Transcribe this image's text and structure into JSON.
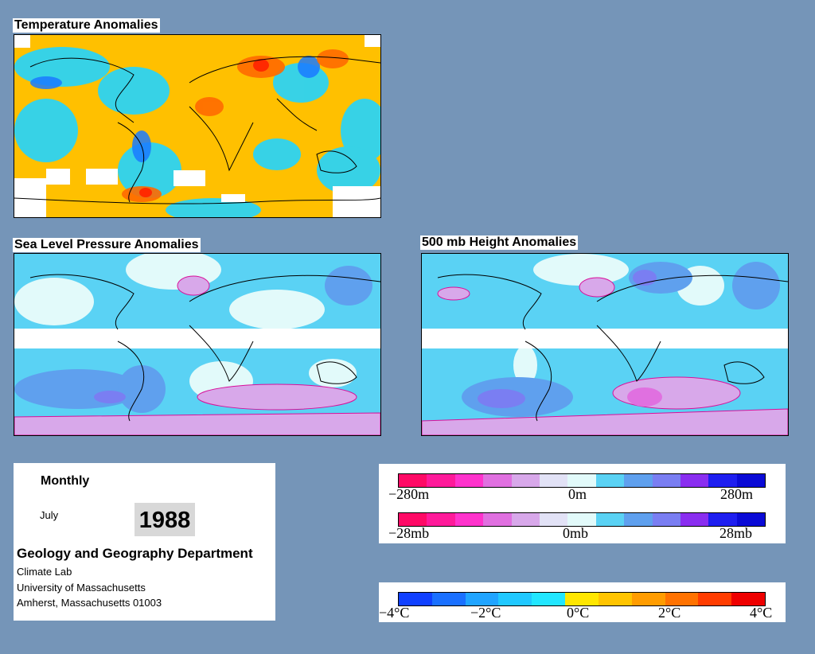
{
  "panels": {
    "temperature": {
      "title": "Temperature Anomalies"
    },
    "slp": {
      "title": "Sea Level Pressure Anomalies"
    },
    "height": {
      "title": "500 mb Height Anomalies"
    }
  },
  "info": {
    "period": "Monthly",
    "month": "July",
    "year": "1988",
    "department": "Geology and Geography Department",
    "lines": [
      "Climate Lab",
      "University of Massachusetts",
      "Amherst, Massachusetts 01003"
    ]
  },
  "legend_height": {
    "labels": [
      "−280m",
      "0m",
      "280m"
    ],
    "colors": [
      "#ff0a66",
      "#ff1a9a",
      "#ff33cc",
      "#e070e0",
      "#d8a8ea",
      "#e2e2f6",
      "#e2fafa",
      "#5ad2f4",
      "#5fa0ee",
      "#7a7ef2",
      "#8a2ef0",
      "#1e1ef0",
      "#0a0ad6"
    ]
  },
  "legend_pressure": {
    "labels": [
      "−28mb",
      "0mb",
      "28mb"
    ],
    "colors": [
      "#ff0a66",
      "#ff1a9a",
      "#ff33cc",
      "#e070e0",
      "#d8a8ea",
      "#e2e2f6",
      "#e2fafa",
      "#5ad2f4",
      "#5fa0ee",
      "#7a7ef2",
      "#8a2ef0",
      "#1e1ef0",
      "#0a0ad6"
    ]
  },
  "legend_temperature": {
    "labels": [
      "−4°C",
      "−2°C",
      "0°C",
      "2°C",
      "4°C"
    ],
    "colors": [
      "#1040ff",
      "#1a70ff",
      "#20a4ff",
      "#20c8ff",
      "#22e6ff",
      "#ffe600",
      "#ffc400",
      "#ff9c00",
      "#ff7200",
      "#ff3c00",
      "#ee0000"
    ]
  }
}
